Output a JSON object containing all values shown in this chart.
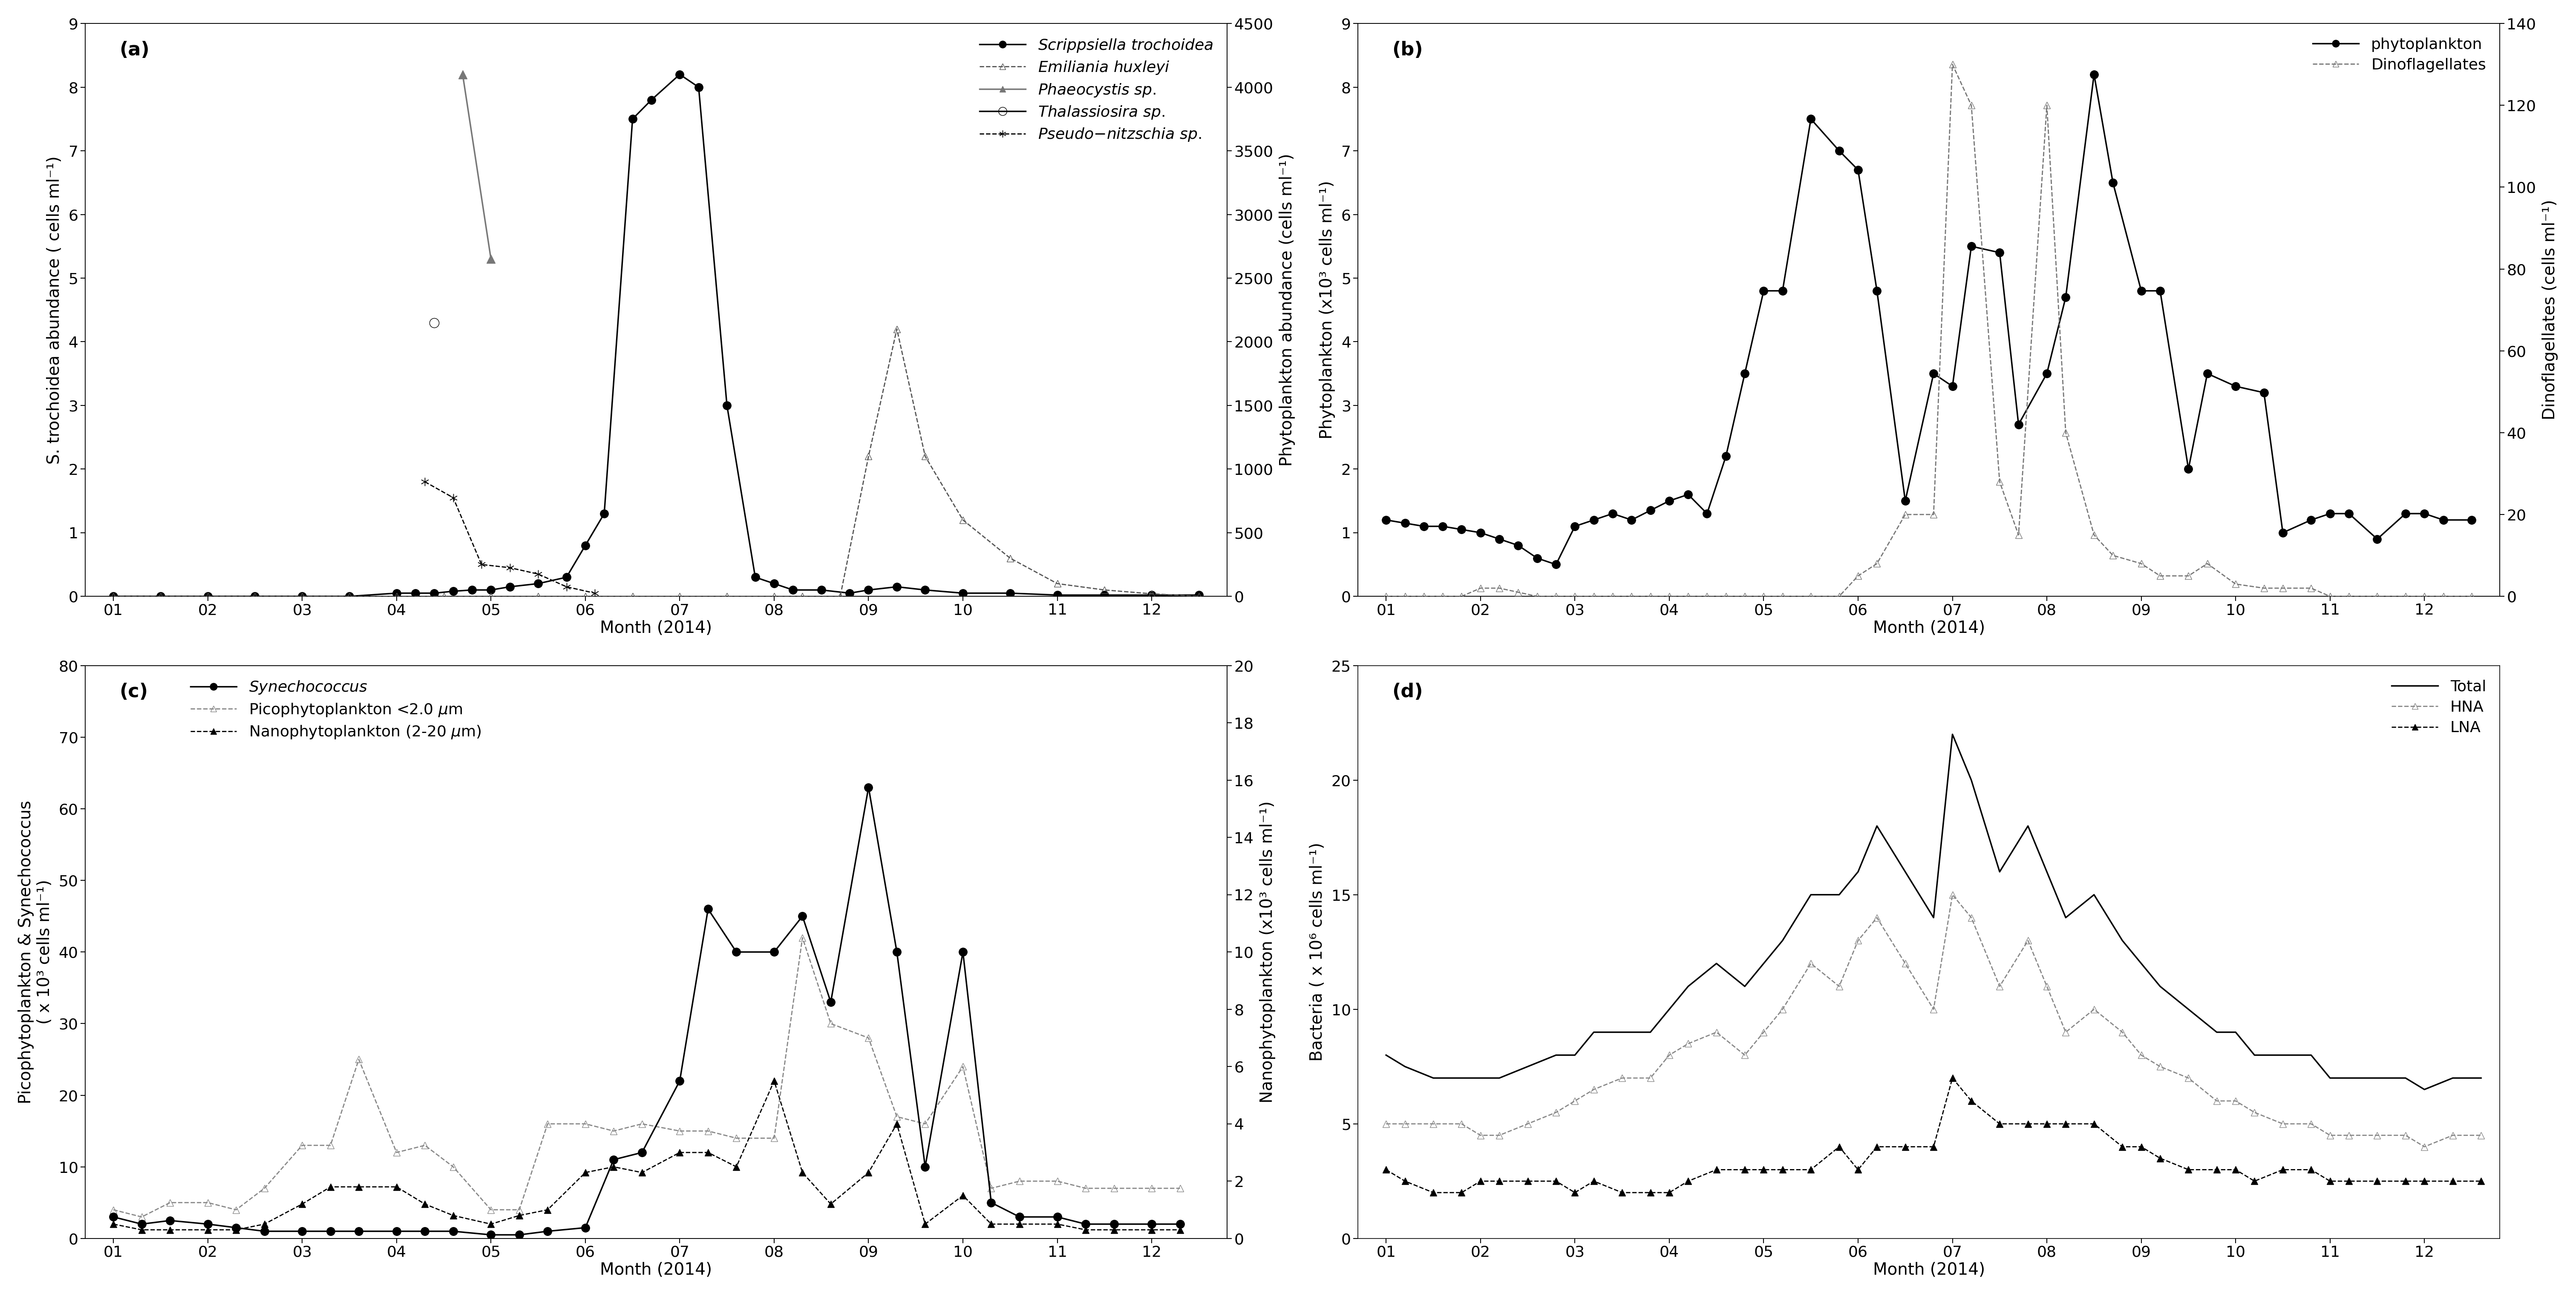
{
  "panel_a": {
    "label": "(a)",
    "scrippsiella_m": [
      1,
      1.5,
      2,
      2.5,
      3,
      3.5,
      4,
      4.2,
      4.4,
      4.6,
      4.8,
      5.0,
      5.2,
      5.5,
      5.8,
      6.0,
      6.2,
      6.5,
      6.7,
      7.0,
      7.2,
      7.5,
      7.8,
      8.0,
      8.2,
      8.5,
      8.8,
      9.0,
      9.3,
      9.6,
      10.0,
      10.5,
      11.0,
      11.5,
      12.0,
      12.5
    ],
    "scrippsiella": [
      0,
      0,
      0,
      0,
      0,
      0,
      0.05,
      0.05,
      0.05,
      0.08,
      0.1,
      0.1,
      0.15,
      0.2,
      0.3,
      0.8,
      1.3,
      7.5,
      7.8,
      8.2,
      8.0,
      3.0,
      0.3,
      0.2,
      0.1,
      0.1,
      0.05,
      0.1,
      0.15,
      0.1,
      0.05,
      0.05,
      0.02,
      0.02,
      0.02,
      0.02
    ],
    "emiliania_m": [
      1,
      1.5,
      2,
      2.5,
      3,
      3.5,
      4,
      4.5,
      5,
      5.5,
      6,
      6.5,
      7,
      7.5,
      8,
      8.3,
      8.7,
      9.0,
      9.3,
      9.6,
      10.0,
      10.5,
      11.0,
      11.5,
      12.0,
      12.5
    ],
    "emiliania": [
      0,
      0,
      0,
      0,
      0,
      0,
      0,
      0,
      0,
      0,
      0,
      0,
      0,
      0,
      0,
      0,
      0,
      1100,
      2100,
      1100,
      600,
      300,
      100,
      50,
      20,
      0
    ],
    "phaeocystis_m": [
      4.7,
      5.0
    ],
    "phaeocystis": [
      4100,
      2650
    ],
    "thalassiosira_m": [
      4.4
    ],
    "thalassiosira": [
      4.3
    ],
    "pseudo_m": [
      4.3,
      4.6,
      4.9,
      5.2,
      5.5,
      5.8,
      6.1
    ],
    "pseudo": [
      1.8,
      1.55,
      0.5,
      0.45,
      0.35,
      0.15,
      0.05
    ],
    "ylabel_left": "S. trochoidea abundance ( cells ml⁻¹)",
    "ylabel_right": "Phytoplankton abundance (cells ml⁻¹)",
    "ylim_left": [
      0,
      9.0
    ],
    "ylim_right": [
      0,
      4500
    ],
    "yticks_left": [
      0.0,
      1.0,
      2.0,
      3.0,
      4.0,
      5.0,
      6.0,
      7.0,
      8.0,
      9.0
    ],
    "yticks_right": [
      0,
      500,
      1000,
      1500,
      2000,
      2500,
      3000,
      3500,
      4000,
      4500
    ]
  },
  "panel_b": {
    "label": "(b)",
    "phyto_m": [
      1.0,
      1.2,
      1.4,
      1.6,
      1.8,
      2.0,
      2.2,
      2.4,
      2.6,
      2.8,
      3.0,
      3.2,
      3.4,
      3.6,
      3.8,
      4.0,
      4.2,
      4.4,
      4.6,
      4.8,
      5.0,
      5.2,
      5.5,
      5.8,
      6.0,
      6.2,
      6.5,
      6.8,
      7.0,
      7.2,
      7.5,
      7.7,
      8.0,
      8.2,
      8.5,
      8.7,
      9.0,
      9.2,
      9.5,
      9.7,
      10.0,
      10.3,
      10.5,
      10.8,
      11.0,
      11.2,
      11.5,
      11.8,
      12.0,
      12.2,
      12.5
    ],
    "phyto": [
      1.2,
      1.15,
      1.1,
      1.1,
      1.05,
      1.0,
      0.9,
      0.8,
      0.6,
      0.5,
      1.1,
      1.2,
      1.3,
      1.2,
      1.35,
      1.5,
      1.6,
      1.3,
      2.2,
      3.5,
      4.8,
      4.8,
      7.5,
      7.0,
      6.7,
      4.8,
      1.5,
      3.5,
      3.3,
      5.5,
      5.4,
      2.7,
      3.5,
      4.7,
      8.2,
      6.5,
      4.8,
      4.8,
      2.0,
      3.5,
      3.3,
      3.2,
      1.0,
      1.2,
      1.3,
      1.3,
      0.9,
      1.3,
      1.3,
      1.2,
      1.2
    ],
    "dino_m": [
      1.0,
      1.2,
      1.4,
      1.6,
      1.8,
      2.0,
      2.2,
      2.4,
      2.6,
      2.8,
      3.0,
      3.2,
      3.4,
      3.6,
      3.8,
      4.0,
      4.2,
      4.4,
      4.6,
      4.8,
      5.0,
      5.2,
      5.5,
      5.8,
      6.0,
      6.2,
      6.5,
      6.8,
      7.0,
      7.2,
      7.5,
      7.7,
      8.0,
      8.2,
      8.5,
      8.7,
      9.0,
      9.2,
      9.5,
      9.7,
      10.0,
      10.3,
      10.5,
      10.8,
      11.0,
      11.2,
      11.5,
      11.8,
      12.0,
      12.2,
      12.5
    ],
    "dino": [
      0,
      0,
      0,
      0,
      0,
      2,
      2,
      1,
      0,
      0,
      0,
      0,
      0,
      0,
      0,
      0,
      0,
      0,
      0,
      0,
      0,
      0,
      0,
      0,
      5,
      8,
      20,
      20,
      130,
      120,
      28,
      15,
      120,
      40,
      15,
      10,
      8,
      5,
      5,
      8,
      3,
      2,
      2,
      2,
      0,
      0,
      0,
      0,
      0,
      0,
      0
    ],
    "ylabel_left": "Phytoplankton (x10³ cells ml⁻¹)",
    "ylabel_right": "Dinoflagellates (cells ml⁻¹)",
    "ylim_left": [
      0,
      9.0
    ],
    "ylim_right": [
      0,
      140
    ],
    "yticks_left": [
      0.0,
      1.0,
      2.0,
      3.0,
      4.0,
      5.0,
      6.0,
      7.0,
      8.0,
      9.0
    ],
    "yticks_right": [
      0,
      20,
      40,
      60,
      80,
      100,
      120,
      140
    ]
  },
  "panel_c": {
    "label": "(c)",
    "months": [
      1.0,
      1.3,
      1.6,
      2.0,
      2.3,
      2.6,
      3.0,
      3.3,
      3.6,
      4.0,
      4.3,
      4.6,
      5.0,
      5.3,
      5.6,
      6.0,
      6.3,
      6.6,
      7.0,
      7.3,
      7.6,
      8.0,
      8.3,
      8.6,
      9.0,
      9.3,
      9.6,
      10.0,
      10.3,
      10.6,
      11.0,
      11.3,
      11.6,
      12.0,
      12.3
    ],
    "synechococcus": [
      3,
      2,
      2.5,
      2,
      1.5,
      1,
      1,
      1,
      1,
      1,
      1,
      1,
      0.5,
      0.5,
      1,
      1.5,
      11,
      12,
      22,
      46,
      40,
      40,
      45,
      33,
      63,
      40,
      10,
      40,
      5,
      3,
      3,
      2,
      2,
      2,
      2
    ],
    "picophyto": [
      4,
      3,
      5,
      5,
      4,
      7,
      13,
      13,
      25,
      12,
      13,
      10,
      4,
      4,
      16,
      16,
      15,
      16,
      15,
      15,
      14,
      14,
      42,
      30,
      28,
      17,
      16,
      24,
      7,
      8,
      8,
      7,
      7,
      7,
      7
    ],
    "nanophyto": [
      0.5,
      0.3,
      0.3,
      0.3,
      0.3,
      0.5,
      1.2,
      1.8,
      1.8,
      1.8,
      1.2,
      0.8,
      0.5,
      0.8,
      1.0,
      2.3,
      2.5,
      2.3,
      3.0,
      3.0,
      2.5,
      5.5,
      2.3,
      1.2,
      2.3,
      4.0,
      0.5,
      1.5,
      0.5,
      0.5,
      0.5,
      0.3,
      0.3,
      0.3,
      0.3
    ],
    "ylabel_left": "Picophytoplankton & Synechococcus\n( x 10³ cells ml⁻¹)",
    "ylabel_right": "Nanophytoplankton (x10³ cells ml⁻¹)",
    "ylim_left": [
      0,
      80
    ],
    "ylim_right": [
      0,
      20
    ],
    "yticks_left": [
      0,
      10,
      20,
      30,
      40,
      50,
      60,
      70,
      80
    ],
    "yticks_right": [
      0,
      2,
      4,
      6,
      8,
      10,
      12,
      14,
      16,
      18,
      20
    ]
  },
  "panel_d": {
    "label": "(d)",
    "months": [
      1.0,
      1.2,
      1.5,
      1.8,
      2.0,
      2.2,
      2.5,
      2.8,
      3.0,
      3.2,
      3.5,
      3.8,
      4.0,
      4.2,
      4.5,
      4.8,
      5.0,
      5.2,
      5.5,
      5.8,
      6.0,
      6.2,
      6.5,
      6.8,
      7.0,
      7.2,
      7.5,
      7.8,
      8.0,
      8.2,
      8.5,
      8.8,
      9.0,
      9.2,
      9.5,
      9.8,
      10.0,
      10.2,
      10.5,
      10.8,
      11.0,
      11.2,
      11.5,
      11.8,
      12.0,
      12.3,
      12.6
    ],
    "total": [
      8,
      7.5,
      7,
      7,
      7,
      7,
      7.5,
      8,
      8,
      9,
      9,
      9,
      10,
      11,
      12,
      11,
      12,
      13,
      15,
      15,
      16,
      18,
      16,
      14,
      22,
      20,
      16,
      18,
      16,
      14,
      15,
      13,
      12,
      11,
      10,
      9,
      9,
      8,
      8,
      8,
      7,
      7,
      7,
      7,
      6.5,
      7,
      7
    ],
    "hna": [
      5,
      5,
      5,
      5,
      4.5,
      4.5,
      5,
      5.5,
      6,
      6.5,
      7,
      7,
      8,
      8.5,
      9,
      8,
      9,
      10,
      12,
      11,
      13,
      14,
      12,
      10,
      15,
      14,
      11,
      13,
      11,
      9,
      10,
      9,
      8,
      7.5,
      7,
      6,
      6,
      5.5,
      5,
      5,
      4.5,
      4.5,
      4.5,
      4.5,
      4,
      4.5,
      4.5
    ],
    "lna": [
      3,
      2.5,
      2,
      2,
      2.5,
      2.5,
      2.5,
      2.5,
      2,
      2.5,
      2,
      2,
      2,
      2.5,
      3,
      3,
      3,
      3,
      3,
      4,
      3,
      4,
      4,
      4,
      7,
      6,
      5,
      5,
      5,
      5,
      5,
      4,
      4,
      3.5,
      3,
      3,
      3,
      2.5,
      3,
      3,
      2.5,
      2.5,
      2.5,
      2.5,
      2.5,
      2.5,
      2.5
    ],
    "ylabel": "Bacteria ( x 10⁶ cells ml⁻¹)",
    "ylim": [
      0,
      25
    ],
    "yticks": [
      0,
      5,
      10,
      15,
      20,
      25
    ]
  },
  "xticks": [
    1,
    2,
    3,
    4,
    5,
    6,
    7,
    8,
    9,
    10,
    11,
    12
  ],
  "xticklabels": [
    "01",
    "02",
    "03",
    "04",
    "05",
    "06",
    "07",
    "08",
    "09",
    "10",
    "11",
    "12"
  ],
  "xlim": [
    0.7,
    12.8
  ],
  "xlabel": "Month (2014)"
}
